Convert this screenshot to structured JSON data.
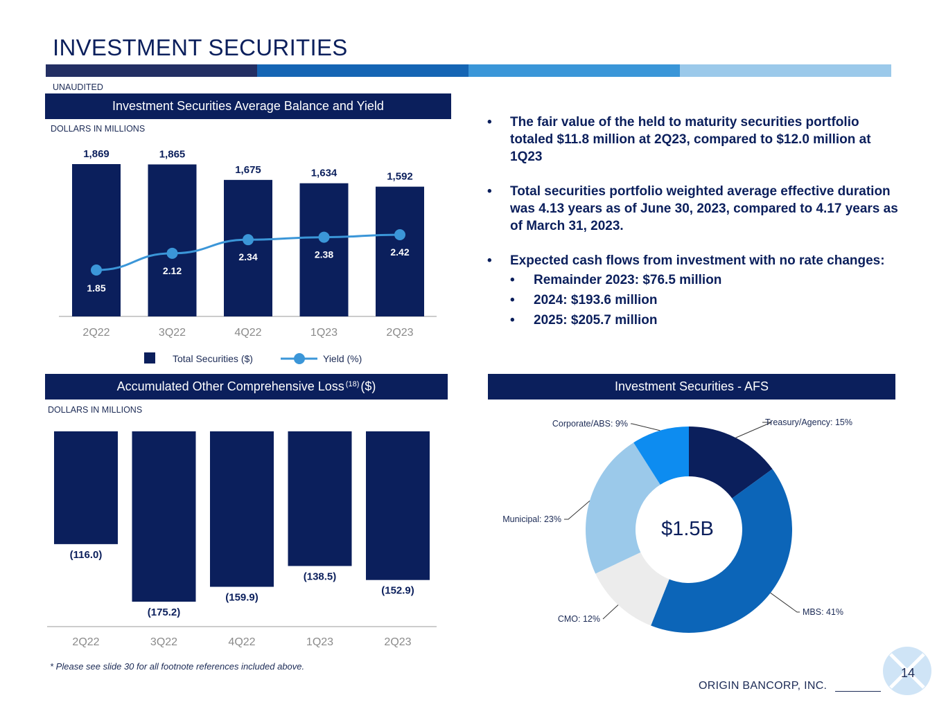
{
  "page": {
    "title": "INVESTMENT SECURITIES",
    "unaudited": "UNAUDITED",
    "page_number": "14",
    "company": "ORIGIN BANCORP, INC.",
    "footnote": "* Please see slide 30 for all footnote references included above.",
    "strip_colors": [
      "#232f63",
      "#1565b4",
      "#3a96d8",
      "#9bc9ea"
    ]
  },
  "panels": {
    "balance_header": "Investment Securities Average Balance and Yield",
    "balance_units": "DOLLARS IN MILLIONS",
    "aocl_header": "Accumulated Other Comprehensive Loss",
    "aocl_sup": "(18)",
    "aocl_suffix": "($)",
    "aocl_units": "DOLLARS IN MILLIONS",
    "afs_header": "Investment Securities - AFS"
  },
  "bullets": {
    "items": [
      "The fair value of the held to maturity securities portfolio totaled $11.8 million at 2Q23, compared to $12.0 million at 1Q23",
      "Total securities portfolio weighted average effective duration was 4.13 years as of June 30, 2023, compared to 4.17 years as of March 31, 2023.",
      "Expected cash flows from investment with no rate changes:"
    ],
    "sub_items": [
      "Remainder 2023: $76.5 million",
      "2024: $193.6 million",
      "2025: $205.7 million"
    ]
  },
  "chart_data": [
    {
      "type": "bar",
      "title": "Investment Securities Average Balance and Yield",
      "categories": [
        "2Q22",
        "3Q22",
        "4Q22",
        "1Q23",
        "2Q23"
      ],
      "series": [
        {
          "name": "Total Securities ($)",
          "type": "bar",
          "values": [
            1869,
            1865,
            1675,
            1634,
            1592
          ],
          "labels": [
            "1,869",
            "1,865",
            "1,675",
            "1,634",
            "1,592"
          ],
          "color": "#0b1f5c"
        },
        {
          "name": "Yield (%)",
          "type": "line",
          "values": [
            1.85,
            2.12,
            2.34,
            2.38,
            2.42
          ],
          "labels": [
            "1.85",
            "2.12",
            "2.34",
            "2.38",
            "2.42"
          ],
          "color": "#3b96d8"
        }
      ],
      "ylim": [
        0,
        1869
      ],
      "legend": "bottom"
    },
    {
      "type": "bar",
      "title": "Accumulated Other Comprehensive Loss ($)",
      "categories": [
        "2Q22",
        "3Q22",
        "4Q22",
        "1Q23",
        "2Q23"
      ],
      "values": [
        -116.0,
        -175.2,
        -159.9,
        -138.5,
        -152.9
      ],
      "labels": [
        "(116.0)",
        "(175.2)",
        "(159.9)",
        "(138.5)",
        "(152.9)"
      ],
      "ylim": [
        -175.2,
        0
      ],
      "color": "#0b1f5c"
    },
    {
      "type": "pie",
      "title": "Investment Securities - AFS",
      "center_label": "$1.5B",
      "slices": [
        {
          "label": "Treasury/Agency: 15%",
          "value": 15,
          "color": "#0b1f5c"
        },
        {
          "label": "MBS: 41%",
          "value": 41,
          "color": "#0c65b8"
        },
        {
          "label": "CMO: 12%",
          "value": 12,
          "color": "#ececec"
        },
        {
          "label": "Municipal: 23%",
          "value": 23,
          "color": "#9bc9ea"
        },
        {
          "label": "Corporate/ABS: 9%",
          "value": 9,
          "color": "#0d8cf0"
        }
      ]
    }
  ]
}
